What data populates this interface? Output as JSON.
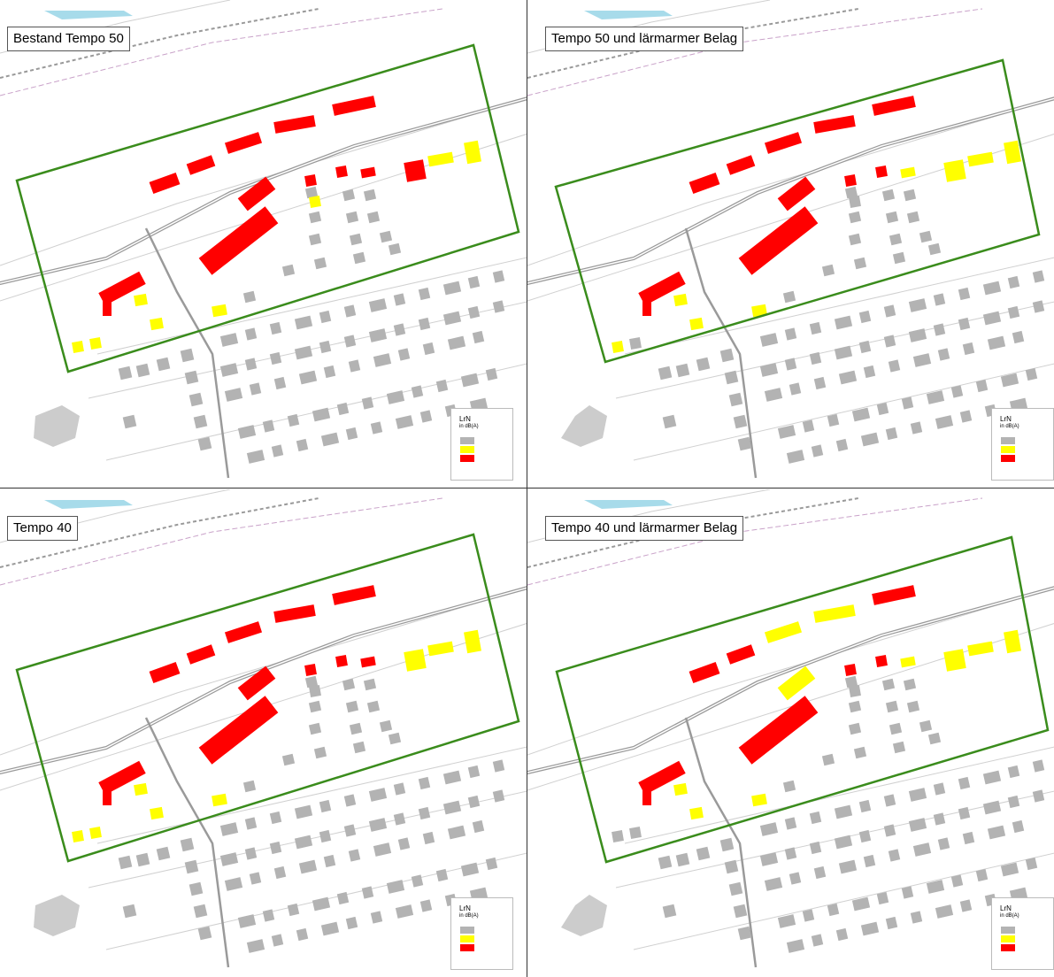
{
  "panels": [
    {
      "title": "Bestand Tempo 50"
    },
    {
      "title": "Tempo 50 und lärmarmer Belag"
    },
    {
      "title": "Tempo 40"
    },
    {
      "title": "Tempo 40 und lärmarmer Belag"
    }
  ],
  "legend": {
    "title": "LrN",
    "unit": "in dB(A)",
    "classes": [
      {
        "level": "low",
        "color": "#b3b3b3"
      },
      {
        "level": "mid",
        "color": "#ffff00"
      },
      {
        "level": "high",
        "color": "#ff0000"
      }
    ]
  },
  "colors": {
    "building": "#b3b3b3",
    "building_mid": "#ffff00",
    "building_high": "#ff0000",
    "study_area": "#3a8c1c",
    "water": "#a7dbea",
    "road": "#9a9a9a",
    "railway": "#999999"
  }
}
